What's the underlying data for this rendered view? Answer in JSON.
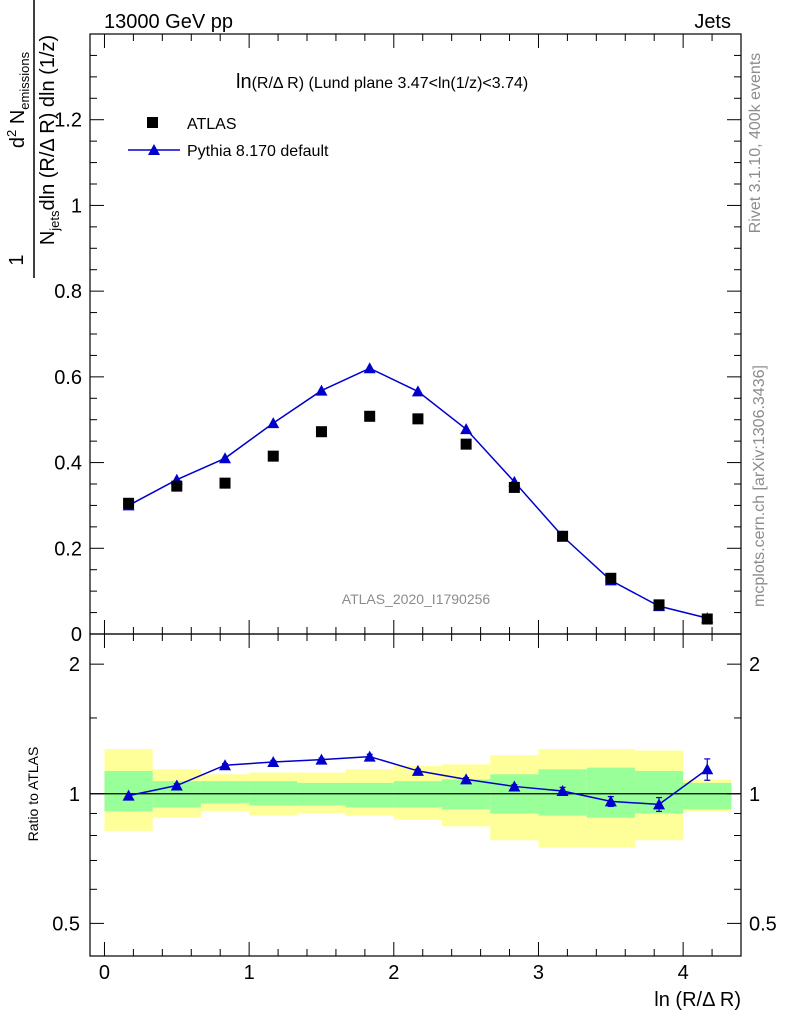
{
  "header": {
    "left": "13000 GeV pp",
    "right": "Jets"
  },
  "side_labels": {
    "rivet": "Rivet 3.1.10,  400k events",
    "mcplots": "mcplots.cern.ch [arXiv:1306.3436]"
  },
  "plot_title": {
    "main": "ln",
    "sub": "(R/Δ R)",
    "rest": " (Lund plane 3.47<ln(1/z)<3.74)"
  },
  "ylabel_main": {
    "one": "1",
    "n_jets": "N",
    "n_jets_sub": "jets",
    "den_rest": "dln (R/Δ R) dln (1/z)",
    "num_d": "d",
    "num_sup": "2",
    "num_n": " N",
    "num_sub": "emissions"
  },
  "ylabel_ratio": "Ratio to ATLAS",
  "xlabel": "ln (R/Δ R)",
  "watermark": "ATLAS_2020_I1790256",
  "legend": {
    "data": "ATLAS",
    "mc": "Pythia 8.170 default"
  },
  "colors": {
    "mc_line": "#0000cc",
    "data_marker": "#000000",
    "band_inner": "#99ff99",
    "band_outer": "#ffff99"
  },
  "chart_data": {
    "type": "scatter",
    "x_edges": [
      0.0,
      0.3333,
      0.6667,
      1.0,
      1.3333,
      1.6667,
      2.0,
      2.3333,
      2.6667,
      3.0,
      3.3333,
      3.6667,
      4.0,
      4.3333
    ],
    "x": [
      0.1667,
      0.5,
      0.8333,
      1.1667,
      1.5,
      1.8333,
      2.1667,
      2.5,
      2.8333,
      3.1667,
      3.5,
      3.8333,
      4.1667
    ],
    "series": [
      {
        "name": "ATLAS",
        "values": [
          0.305,
          0.345,
          0.352,
          0.415,
          0.472,
          0.508,
          0.502,
          0.443,
          0.342,
          0.228,
          0.13,
          0.068,
          0.035
        ]
      },
      {
        "name": "Pythia 8.170 default",
        "values": [
          0.3,
          0.36,
          0.41,
          0.492,
          0.568,
          0.62,
          0.566,
          0.478,
          0.355,
          0.228,
          0.125,
          0.065,
          0.037
        ]
      }
    ],
    "mc_errors": [
      0.003,
      0.003,
      0.003,
      0.004,
      0.004,
      0.008,
      0.005,
      0.004,
      0.004,
      0.003,
      0.003,
      0.003,
      0.002
    ],
    "ratio": {
      "values": [
        0.99,
        1.045,
        1.165,
        1.185,
        1.2,
        1.22,
        1.13,
        1.08,
        1.04,
        1.015,
        0.96,
        0.945,
        1.14
      ],
      "errors": [
        0.01,
        0.01,
        0.01,
        0.01,
        0.01,
        0.015,
        0.01,
        0.01,
        0.01,
        0.02,
        0.025,
        0.035,
        0.065
      ],
      "band_inner": [
        [
          0.91,
          1.13
        ],
        [
          0.93,
          1.07
        ],
        [
          0.95,
          1.07
        ],
        [
          0.94,
          1.07
        ],
        [
          0.94,
          1.06
        ],
        [
          0.93,
          1.06
        ],
        [
          0.93,
          1.07
        ],
        [
          0.92,
          1.08
        ],
        [
          0.9,
          1.11
        ],
        [
          0.89,
          1.14
        ],
        [
          0.88,
          1.15
        ],
        [
          0.9,
          1.13
        ],
        [
          0.92,
          1.06
        ]
      ],
      "band_outer": [
        [
          0.82,
          1.27
        ],
        [
          0.88,
          1.14
        ],
        [
          0.91,
          1.11
        ],
        [
          0.89,
          1.12
        ],
        [
          0.9,
          1.12
        ],
        [
          0.89,
          1.14
        ],
        [
          0.87,
          1.16
        ],
        [
          0.84,
          1.17
        ],
        [
          0.78,
          1.23
        ],
        [
          0.75,
          1.27
        ],
        [
          0.75,
          1.27
        ],
        [
          0.78,
          1.26
        ],
        [
          0.91,
          1.08
        ]
      ]
    },
    "xlim": [
      -0.1,
      4.4
    ],
    "ylim": [
      0,
      1.4
    ],
    "ratio_ylim": [
      0.42,
      2.35
    ],
    "x_ticks": [
      "0",
      "1",
      "2",
      "3",
      "4"
    ],
    "y_ticks": [
      "0",
      "0.2",
      "0.4",
      "0.6",
      "0.8",
      "1",
      "1.2"
    ],
    "ratio_ticks": [
      "0.5",
      "1",
      "2"
    ],
    "legend_position": "top-left"
  }
}
